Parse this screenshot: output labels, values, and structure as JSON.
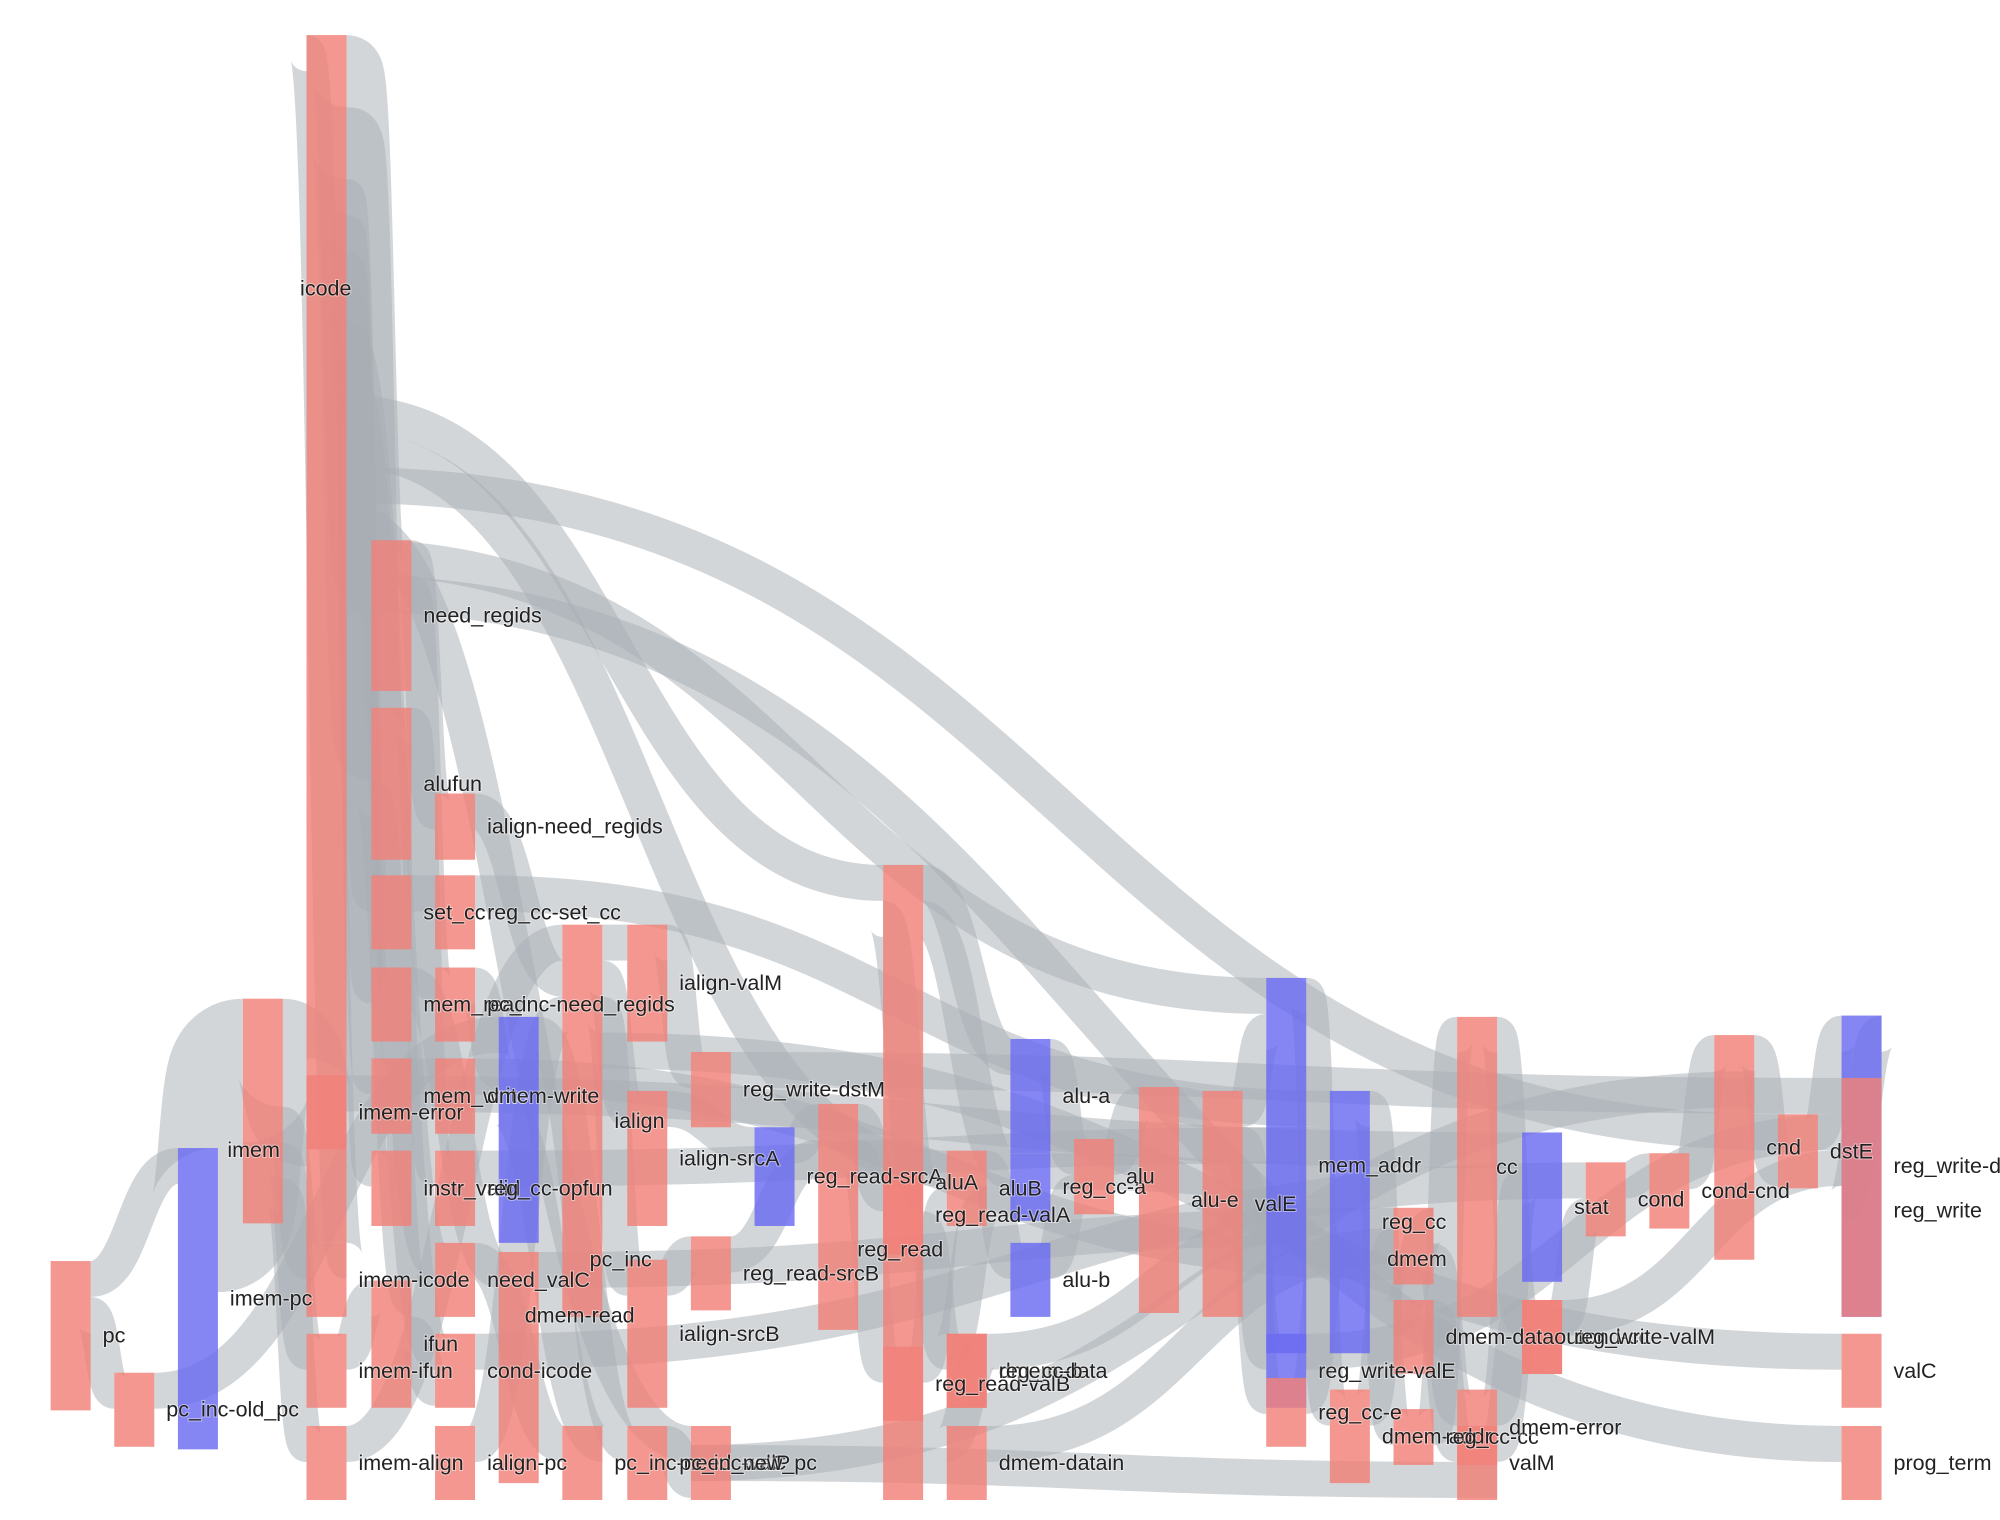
{
  "colors": {
    "node_red": "#f08078",
    "node_blue": "#6a6af2",
    "link": "#a8aeb4"
  },
  "chart_data": {
    "type": "sankey",
    "nodes": [
      {
        "id": "pc",
        "label": "pc",
        "color": "red"
      },
      {
        "id": "imem-pc",
        "label": "imem-pc",
        "color": "blue"
      },
      {
        "id": "pc_inc-old_pc",
        "label": "pc_inc-old_pc",
        "color": "red"
      },
      {
        "id": "imem",
        "label": "imem",
        "color": "red"
      },
      {
        "id": "imem-error",
        "label": "imem-error",
        "color": "red"
      },
      {
        "id": "imem-icode",
        "label": "imem-icode",
        "color": "red"
      },
      {
        "id": "imem-ifun",
        "label": "imem-ifun",
        "color": "red"
      },
      {
        "id": "imem-align",
        "label": "imem-align",
        "color": "red"
      },
      {
        "id": "icode",
        "label": "icode",
        "color": "red"
      },
      {
        "id": "ifun",
        "label": "ifun",
        "color": "red"
      },
      {
        "id": "need_regids",
        "label": "need_regids",
        "color": "red"
      },
      {
        "id": "alufun",
        "label": "alufun",
        "color": "red"
      },
      {
        "id": "set_cc",
        "label": "set_cc",
        "color": "red"
      },
      {
        "id": "mem_read",
        "label": "mem_read",
        "color": "red"
      },
      {
        "id": "mem_write",
        "label": "mem_write",
        "color": "red"
      },
      {
        "id": "instr_valid",
        "label": "instr_valid",
        "color": "red"
      },
      {
        "id": "need_valC",
        "label": "need_valC",
        "color": "red"
      },
      {
        "id": "cond-icode",
        "label": "cond-icode",
        "color": "red"
      },
      {
        "id": "ialign-pc",
        "label": "ialign-pc",
        "color": "red"
      },
      {
        "id": "ialign-need_regids",
        "label": "ialign-need_regids",
        "color": "red"
      },
      {
        "id": "reg_cc-set_cc",
        "label": "reg_cc-set_cc",
        "color": "red"
      },
      {
        "id": "pc_inc-need_regids",
        "label": "pc_inc-need_regids",
        "color": "red"
      },
      {
        "id": "dmem-write",
        "label": "dmem-write",
        "color": "red"
      },
      {
        "id": "reg_cc-opfun",
        "label": "reg_cc-opfun",
        "color": "red"
      },
      {
        "id": "dmem-read",
        "label": "dmem-read",
        "color": "red"
      },
      {
        "id": "pc_inc-need_valC",
        "label": "pc_inc-need_valC",
        "color": "red"
      },
      {
        "id": "ialign",
        "label": "ialign",
        "color": "red"
      },
      {
        "id": "pc_inc",
        "label": "pc_inc",
        "color": "blue"
      },
      {
        "id": "ialign-valM",
        "label": "ialign-valM",
        "color": "red"
      },
      {
        "id": "ialign-srcA",
        "label": "ialign-srcA",
        "color": "red"
      },
      {
        "id": "ialign-srcB",
        "label": "ialign-srcB",
        "color": "red"
      },
      {
        "id": "pc_inc-valP",
        "label": "pc_inc-valP",
        "color": "red"
      },
      {
        "id": "new_pc",
        "label": "new_pc",
        "color": "red"
      },
      {
        "id": "reg_write-dstM",
        "label": "reg_write-dstM",
        "color": "red"
      },
      {
        "id": "reg_read-srcA",
        "label": "reg_read-srcA",
        "color": "blue"
      },
      {
        "id": "reg_read-srcB",
        "label": "reg_read-srcB",
        "color": "red"
      },
      {
        "id": "reg_read",
        "label": "reg_read",
        "color": "red"
      },
      {
        "id": "reg_read-valA",
        "label": "reg_read-valA",
        "color": "red"
      },
      {
        "id": "reg_read-valB",
        "label": "reg_read-valB",
        "color": "red"
      },
      {
        "id": "aluA",
        "label": "aluA",
        "color": "red"
      },
      {
        "id": "aluB",
        "label": "aluB",
        "color": "red"
      },
      {
        "id": "dmem-data",
        "label": "dmem-data",
        "color": "red"
      },
      {
        "id": "dmem-datain",
        "label": "dmem-datain",
        "color": "red"
      },
      {
        "id": "alu-a",
        "label": "alu-a",
        "color": "blue"
      },
      {
        "id": "reg_cc-a",
        "label": "reg_cc-a",
        "color": "blue"
      },
      {
        "id": "alu-b",
        "label": "alu-b",
        "color": "blue"
      },
      {
        "id": "reg_cc-b",
        "label": "reg_cc-b",
        "color": "red"
      },
      {
        "id": "alu",
        "label": "alu",
        "color": "red"
      },
      {
        "id": "alu-e",
        "label": "alu-e",
        "color": "red"
      },
      {
        "id": "valE",
        "label": "valE",
        "color": "red"
      },
      {
        "id": "mem_addr",
        "label": "mem_addr",
        "color": "blue"
      },
      {
        "id": "reg_write-valE",
        "label": "reg_write-valE",
        "color": "blue"
      },
      {
        "id": "reg_cc-e",
        "label": "reg_cc-e",
        "color": "red"
      },
      {
        "id": "reg_cc",
        "label": "reg_cc",
        "color": "blue"
      },
      {
        "id": "dmem-addr",
        "label": "dmem-addr",
        "color": "red"
      },
      {
        "id": "reg_cc-cc",
        "label": "reg_cc-cc",
        "color": "red"
      },
      {
        "id": "dmem",
        "label": "dmem",
        "color": "red"
      },
      {
        "id": "cc",
        "label": "cc",
        "color": "red"
      },
      {
        "id": "dmem-dataout",
        "label": "dmem-dataout",
        "color": "red"
      },
      {
        "id": "dmem-error",
        "label": "dmem-error",
        "color": "red"
      },
      {
        "id": "valM",
        "label": "valM",
        "color": "red"
      },
      {
        "id": "stat",
        "label": "stat",
        "color": "blue"
      },
      {
        "id": "cond-cc",
        "label": "cond-cc",
        "color": "red"
      },
      {
        "id": "reg_write-valM",
        "label": "reg_write-valM",
        "color": "red"
      },
      {
        "id": "cond",
        "label": "cond",
        "color": "red"
      },
      {
        "id": "cond-cnd",
        "label": "cond-cnd",
        "color": "red"
      },
      {
        "id": "cnd",
        "label": "cnd",
        "color": "red"
      },
      {
        "id": "dstE",
        "label": "dstE",
        "color": "red"
      },
      {
        "id": "reg_write-dstE",
        "label": "reg_write-dstE",
        "color": "blue"
      },
      {
        "id": "reg_write",
        "label": "reg_write",
        "color": "red"
      },
      {
        "id": "valC",
        "label": "valC",
        "color": "red"
      },
      {
        "id": "prog_term",
        "label": "prog_term",
        "color": "red"
      }
    ],
    "links": [
      {
        "source": "pc",
        "target": "imem-pc",
        "value": 2
      },
      {
        "source": "pc",
        "target": "pc_inc-old_pc",
        "value": 2
      },
      {
        "source": "imem-pc",
        "target": "imem",
        "value": 8
      },
      {
        "source": "pc_inc-old_pc",
        "target": "pc_inc",
        "value": 2
      },
      {
        "source": "imem",
        "target": "imem-error",
        "value": 6
      },
      {
        "source": "imem",
        "target": "imem-icode",
        "value": 2
      },
      {
        "source": "imem",
        "target": "imem-ifun",
        "value": 2
      },
      {
        "source": "imem",
        "target": "imem-align",
        "value": 2
      },
      {
        "source": "imem-icode",
        "target": "icode",
        "value": 2
      },
      {
        "source": "imem-ifun",
        "target": "ifun",
        "value": 2
      },
      {
        "source": "imem-align",
        "target": "ialign",
        "value": 2
      },
      {
        "source": "imem-error",
        "target": "stat",
        "value": 2
      },
      {
        "source": "icode",
        "target": "need_regids",
        "value": 4
      },
      {
        "source": "icode",
        "target": "alufun",
        "value": 4
      },
      {
        "source": "icode",
        "target": "set_cc",
        "value": 2
      },
      {
        "source": "icode",
        "target": "mem_read",
        "value": 2
      },
      {
        "source": "icode",
        "target": "mem_write",
        "value": 2
      },
      {
        "source": "icode",
        "target": "instr_valid",
        "value": 2
      },
      {
        "source": "icode",
        "target": "need_valC",
        "value": 2
      },
      {
        "source": "icode",
        "target": "cond-icode",
        "value": 2
      },
      {
        "source": "icode",
        "target": "aluA",
        "value": 2
      },
      {
        "source": "icode",
        "target": "aluB",
        "value": 2
      },
      {
        "source": "icode",
        "target": "dstE",
        "value": 2
      },
      {
        "source": "icode",
        "target": "new_pc",
        "value": 2
      },
      {
        "source": "icode",
        "target": "mem_addr",
        "value": 2
      },
      {
        "source": "icode",
        "target": "prog_term",
        "value": 2
      },
      {
        "source": "ifun",
        "target": "alufun",
        "value": 2
      },
      {
        "source": "ifun",
        "target": "cond-icode",
        "value": 2
      },
      {
        "source": "need_regids",
        "target": "ialign-need_regids",
        "value": 2
      },
      {
        "source": "need_regids",
        "target": "pc_inc-need_regids",
        "value": 2
      },
      {
        "source": "alufun",
        "target": "reg_cc-opfun",
        "value": 2
      },
      {
        "source": "set_cc",
        "target": "reg_cc-set_cc",
        "value": 2
      },
      {
        "source": "mem_read",
        "target": "dmem-read",
        "value": 2
      },
      {
        "source": "mem_write",
        "target": "dmem-write",
        "value": 2
      },
      {
        "source": "need_valC",
        "target": "pc_inc-need_valC",
        "value": 2
      },
      {
        "source": "cond-icode",
        "target": "cond",
        "value": 2
      },
      {
        "source": "ialign-need_regids",
        "target": "ialign",
        "value": 2
      },
      {
        "source": "ialign-pc",
        "target": "ialign",
        "value": 2
      },
      {
        "source": "pc_inc-need_regids",
        "target": "pc_inc",
        "value": 2
      },
      {
        "source": "pc_inc-need_valC",
        "target": "pc_inc",
        "value": 2
      },
      {
        "source": "reg_cc-set_cc",
        "target": "reg_cc",
        "value": 2
      },
      {
        "source": "reg_cc-opfun",
        "target": "reg_cc",
        "value": 2
      },
      {
        "source": "dmem-read",
        "target": "dmem",
        "value": 2
      },
      {
        "source": "dmem-write",
        "target": "dmem",
        "value": 2
      },
      {
        "source": "ialign",
        "target": "ialign-valM",
        "value": 2
      },
      {
        "source": "ialign",
        "target": "ialign-srcA",
        "value": 2
      },
      {
        "source": "ialign",
        "target": "ialign-srcB",
        "value": 2
      },
      {
        "source": "ialign",
        "target": "valC",
        "value": 2
      },
      {
        "source": "pc_inc",
        "target": "pc_inc-valP",
        "value": 2
      },
      {
        "source": "ialign-valM",
        "target": "reg_write-dstM",
        "value": 2
      },
      {
        "source": "ialign-srcA",
        "target": "reg_read-srcA",
        "value": 2
      },
      {
        "source": "ialign-srcB",
        "target": "reg_read-srcB",
        "value": 2
      },
      {
        "source": "pc_inc-valP",
        "target": "new_pc",
        "value": 2
      },
      {
        "source": "reg_read-srcA",
        "target": "reg_read",
        "value": 2
      },
      {
        "source": "reg_read-srcB",
        "target": "reg_read",
        "value": 2
      },
      {
        "source": "reg_write-dstM",
        "target": "reg_write",
        "value": 2
      },
      {
        "source": "reg_read",
        "target": "reg_read-valA",
        "value": 2
      },
      {
        "source": "reg_read",
        "target": "reg_read-valB",
        "value": 2
      },
      {
        "source": "reg_read-valA",
        "target": "aluA",
        "value": 2
      },
      {
        "source": "reg_read-valA",
        "target": "dmem-data",
        "value": 2
      },
      {
        "source": "reg_read-valB",
        "target": "aluB",
        "value": 2
      },
      {
        "source": "dmem-data",
        "target": "dmem-datain",
        "value": 2
      },
      {
        "source": "aluA",
        "target": "alu-a",
        "value": 2
      },
      {
        "source": "aluA",
        "target": "reg_cc-a",
        "value": 2
      },
      {
        "source": "aluB",
        "target": "alu-b",
        "value": 2
      },
      {
        "source": "aluB",
        "target": "reg_cc-b",
        "value": 2
      },
      {
        "source": "alu-a",
        "target": "alu",
        "value": 2
      },
      {
        "source": "alu-b",
        "target": "alu",
        "value": 2
      },
      {
        "source": "alu",
        "target": "alu-e",
        "value": 2
      },
      {
        "source": "alu-e",
        "target": "valE",
        "value": 2
      },
      {
        "source": "valE",
        "target": "mem_addr",
        "value": 2
      },
      {
        "source": "valE",
        "target": "reg_write-valE",
        "value": 2
      },
      {
        "source": "valE",
        "target": "reg_cc-e",
        "value": 2
      },
      {
        "source": "reg_cc-a",
        "target": "reg_cc",
        "value": 2
      },
      {
        "source": "reg_cc-b",
        "target": "reg_cc",
        "value": 2
      },
      {
        "source": "reg_cc-e",
        "target": "reg_cc",
        "value": 2
      },
      {
        "source": "mem_addr",
        "target": "dmem-addr",
        "value": 2
      },
      {
        "source": "dmem-datain",
        "target": "dmem",
        "value": 2
      },
      {
        "source": "dmem-addr",
        "target": "dmem",
        "value": 2
      },
      {
        "source": "reg_cc",
        "target": "reg_cc-cc",
        "value": 2
      },
      {
        "source": "reg_cc-cc",
        "target": "cc",
        "value": 2
      },
      {
        "source": "dmem",
        "target": "dmem-dataout",
        "value": 2
      },
      {
        "source": "dmem",
        "target": "dmem-error",
        "value": 2
      },
      {
        "source": "dmem-dataout",
        "target": "valM",
        "value": 2
      },
      {
        "source": "dmem-error",
        "target": "stat",
        "value": 2
      },
      {
        "source": "cc",
        "target": "cond-cc",
        "value": 2
      },
      {
        "source": "valM",
        "target": "reg_write-valM",
        "value": 2
      },
      {
        "source": "valM",
        "target": "new_pc",
        "value": 2
      },
      {
        "source": "reg_write-valE",
        "target": "reg_write",
        "value": 2
      },
      {
        "source": "cond-cc",
        "target": "cond",
        "value": 2
      },
      {
        "source": "reg_write-valM",
        "target": "reg_write",
        "value": 2
      },
      {
        "source": "cond",
        "target": "cond-cnd",
        "value": 2
      },
      {
        "source": "cond-cnd",
        "target": "cnd",
        "value": 2
      },
      {
        "source": "cnd",
        "target": "dstE",
        "value": 2
      },
      {
        "source": "cnd",
        "target": "new_pc",
        "value": 2
      },
      {
        "source": "dstE",
        "target": "reg_write-dstE",
        "value": 2
      },
      {
        "source": "reg_write-dstE",
        "target": "reg_write",
        "value": 2
      }
    ]
  }
}
